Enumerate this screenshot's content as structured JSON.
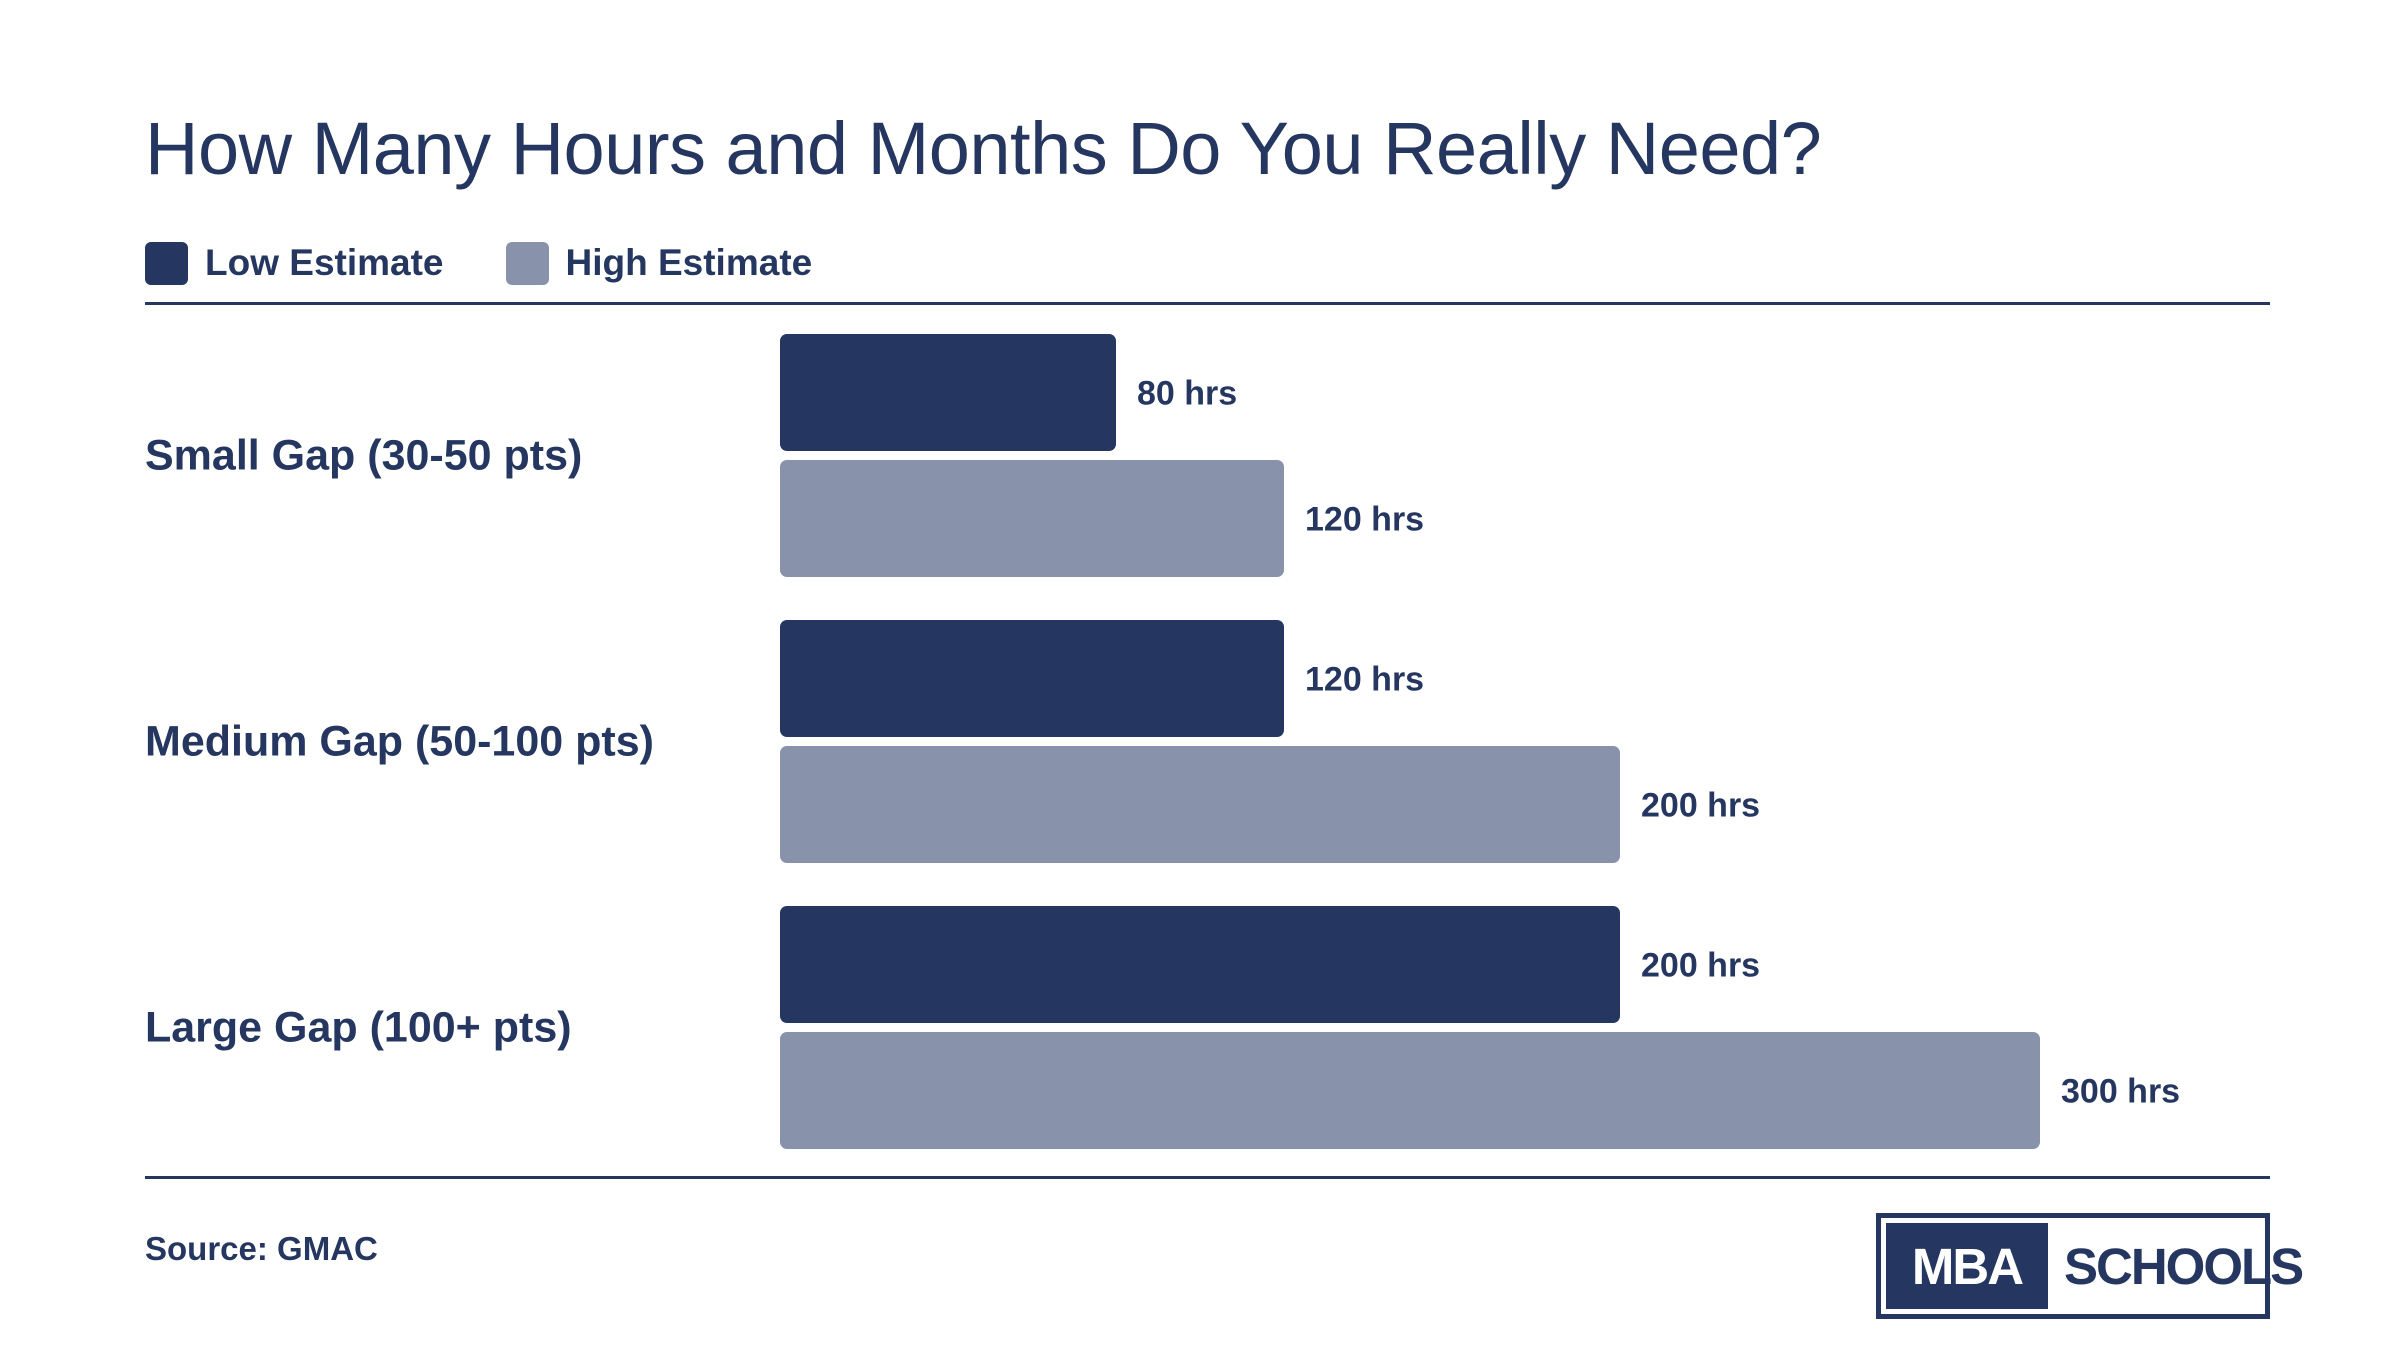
{
  "colors": {
    "low": "#253760",
    "high": "#8892aa",
    "text": "#253760"
  },
  "legend": [
    {
      "label": "Low Estimate",
      "color": "#253760"
    },
    {
      "label": "High Estimate",
      "color": "#8892aa"
    }
  ],
  "source": "Source: GMAC",
  "logo": {
    "part1": "MBA",
    "part2": "SCHOOLS"
  },
  "chart_data": {
    "type": "bar",
    "orientation": "horizontal",
    "title": "How Many Hours and Months Do You Really Need?",
    "categories": [
      "Small Gap (30-50 pts)",
      "Medium Gap (50-100 pts)",
      "Large Gap (100+ pts)"
    ],
    "series": [
      {
        "name": "Low Estimate",
        "values": [
          80,
          120,
          200
        ],
        "labels": [
          "80 hrs",
          "120 hrs",
          "200 hrs"
        ]
      },
      {
        "name": "High Estimate",
        "values": [
          120,
          200,
          300
        ],
        "labels": [
          "120 hrs",
          "200 hrs",
          "300 hrs"
        ]
      }
    ],
    "xlim": [
      0,
      300
    ],
    "unit": "hrs",
    "grid": false,
    "legend_position": "top-left"
  }
}
